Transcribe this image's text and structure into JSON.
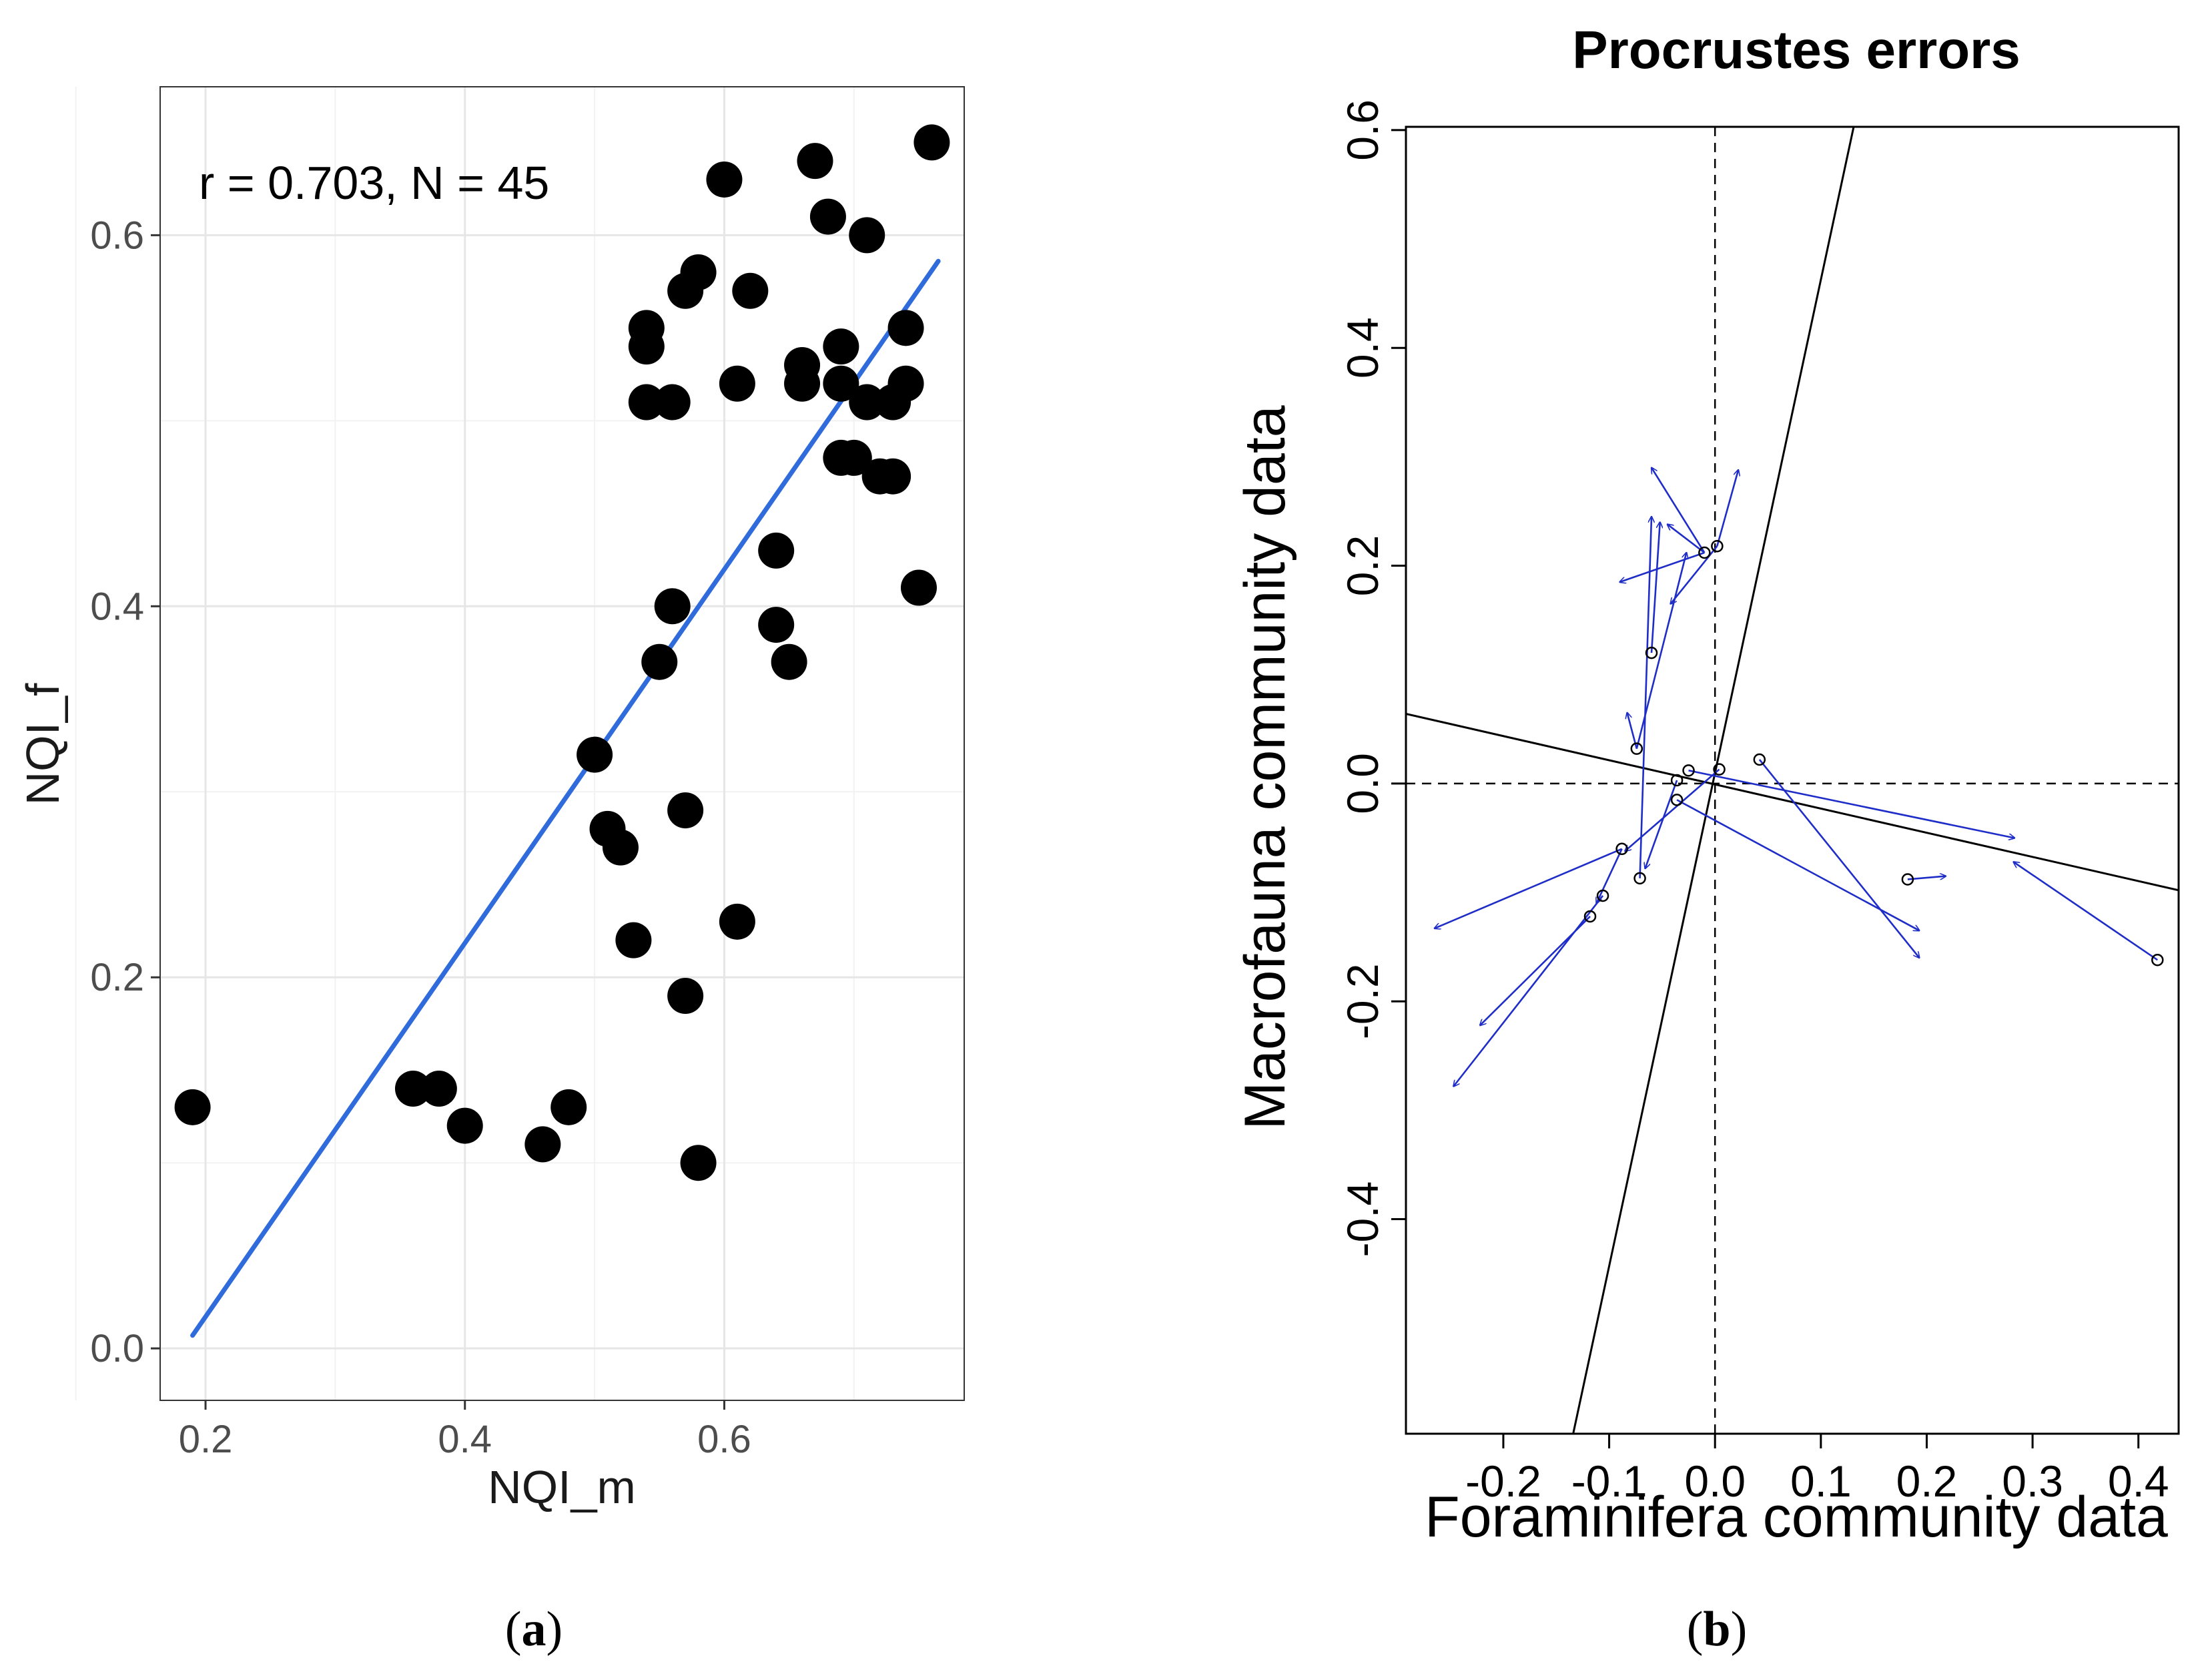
{
  "chart_data": [
    {
      "type": "scatter",
      "panel_label": "(a)",
      "panel_label_parts": [
        "(",
        "a",
        ")"
      ],
      "xlabel": "NQI_m",
      "ylabel": "NQI_f",
      "annotation": "r = 0.703, N = 45",
      "xlim": [
        0.165,
        0.785
      ],
      "ylim": [
        -0.028,
        0.68
      ],
      "x_ticks": [
        "0.2",
        "0.4",
        "0.6"
      ],
      "x_tick_values": [
        0.2,
        0.4,
        0.6
      ],
      "y_ticks": [
        "0.0",
        "0.2",
        "0.4",
        "0.6"
      ],
      "y_tick_values": [
        0.0,
        0.2,
        0.4,
        0.6
      ],
      "grid": true,
      "point_color": "#000000",
      "fit_line_color": "#2F6BDB",
      "fit_line": [
        [
          0.19,
          0.007
        ],
        [
          0.765,
          0.586
        ]
      ],
      "points": [
        [
          0.19,
          0.13
        ],
        [
          0.36,
          0.14
        ],
        [
          0.38,
          0.14
        ],
        [
          0.4,
          0.12
        ],
        [
          0.46,
          0.11
        ],
        [
          0.48,
          0.13
        ],
        [
          0.5,
          0.32
        ],
        [
          0.51,
          0.28
        ],
        [
          0.52,
          0.27
        ],
        [
          0.53,
          0.22
        ],
        [
          0.54,
          0.55
        ],
        [
          0.54,
          0.54
        ],
        [
          0.54,
          0.51
        ],
        [
          0.55,
          0.37
        ],
        [
          0.56,
          0.51
        ],
        [
          0.56,
          0.4
        ],
        [
          0.57,
          0.57
        ],
        [
          0.58,
          0.58
        ],
        [
          0.57,
          0.29
        ],
        [
          0.57,
          0.19
        ],
        [
          0.58,
          0.1
        ],
        [
          0.6,
          0.63
        ],
        [
          0.61,
          0.52
        ],
        [
          0.61,
          0.23
        ],
        [
          0.62,
          0.57
        ],
        [
          0.64,
          0.43
        ],
        [
          0.64,
          0.39
        ],
        [
          0.65,
          0.37
        ],
        [
          0.66,
          0.53
        ],
        [
          0.66,
          0.52
        ],
        [
          0.67,
          0.64
        ],
        [
          0.68,
          0.61
        ],
        [
          0.69,
          0.54
        ],
        [
          0.69,
          0.52
        ],
        [
          0.69,
          0.48
        ],
        [
          0.7,
          0.48
        ],
        [
          0.71,
          0.6
        ],
        [
          0.71,
          0.51
        ],
        [
          0.72,
          0.47
        ],
        [
          0.73,
          0.47
        ],
        [
          0.73,
          0.51
        ],
        [
          0.74,
          0.52
        ],
        [
          0.74,
          0.55
        ],
        [
          0.75,
          0.41
        ],
        [
          0.76,
          0.65
        ]
      ]
    },
    {
      "type": "scatter",
      "panel_label": "(b)",
      "panel_label_parts": [
        "(",
        "b",
        ")"
      ],
      "title": "Procrustes errors",
      "xlabel": "Foraminifera community data",
      "ylabel": "Macrofauna community data",
      "xlim": [
        -0.292,
        0.438
      ],
      "ylim": [
        -0.597,
        0.603
      ],
      "x_ticks": [
        "-0.2",
        "-0.1",
        "0.0",
        "0.1",
        "0.2",
        "0.3",
        "0.4"
      ],
      "x_tick_values": [
        -0.2,
        -0.1,
        0.0,
        0.1,
        0.2,
        0.3,
        0.4
      ],
      "y_ticks": [
        "-0.4",
        "-0.2",
        "0.0",
        "0.2",
        "0.4",
        "0.6"
      ],
      "y_tick_values": [
        -0.4,
        -0.2,
        0.0,
        0.2,
        0.4,
        0.6
      ],
      "grid": false,
      "arrow_color": "#1F2DC8",
      "rotation_axes": [
        [
          [
            -0.134,
            -0.597
          ],
          [
            0.131,
            0.603
          ]
        ],
        [
          [
            -0.292,
            0.064
          ],
          [
            0.438,
            -0.098
          ]
        ]
      ],
      "dashed_axes": true,
      "arrows": [
        [
          -0.01,
          0.212,
          -0.045,
          0.238
        ],
        [
          -0.01,
          0.212,
          -0.09,
          0.185
        ],
        [
          -0.01,
          0.212,
          -0.06,
          0.29
        ],
        [
          0.002,
          0.218,
          0.022,
          0.288
        ],
        [
          0.002,
          0.218,
          -0.042,
          0.165
        ],
        [
          -0.06,
          0.12,
          -0.052,
          0.24
        ],
        [
          -0.074,
          0.032,
          -0.027,
          0.212
        ],
        [
          -0.074,
          0.032,
          -0.083,
          0.065
        ],
        [
          -0.025,
          0.012,
          0.283,
          -0.05
        ],
        [
          -0.036,
          0.003,
          -0.066,
          -0.078
        ],
        [
          0.004,
          0.013,
          -0.085,
          -0.062
        ],
        [
          -0.036,
          -0.015,
          0.193,
          -0.135
        ],
        [
          0.042,
          0.022,
          0.193,
          -0.16
        ],
        [
          -0.088,
          -0.06,
          -0.265,
          -0.133
        ],
        [
          -0.088,
          -0.06,
          -0.112,
          -0.11
        ],
        [
          -0.118,
          -0.122,
          -0.222,
          -0.222
        ],
        [
          -0.106,
          -0.103,
          -0.247,
          -0.278
        ],
        [
          0.418,
          -0.162,
          0.282,
          -0.072
        ],
        [
          0.182,
          -0.088,
          0.218,
          -0.085
        ],
        [
          -0.071,
          -0.087,
          -0.06,
          0.245
        ]
      ],
      "circle_points": [
        [
          -0.01,
          0.212
        ],
        [
          0.002,
          0.218
        ],
        [
          -0.06,
          0.12
        ],
        [
          -0.074,
          0.032
        ],
        [
          -0.025,
          0.012
        ],
        [
          -0.036,
          0.003
        ],
        [
          0.004,
          0.013
        ],
        [
          -0.036,
          -0.015
        ],
        [
          0.042,
          0.022
        ],
        [
          -0.088,
          -0.06
        ],
        [
          -0.118,
          -0.122
        ],
        [
          -0.106,
          -0.103
        ],
        [
          0.418,
          -0.162
        ],
        [
          0.182,
          -0.088
        ],
        [
          -0.071,
          -0.087
        ]
      ]
    }
  ]
}
